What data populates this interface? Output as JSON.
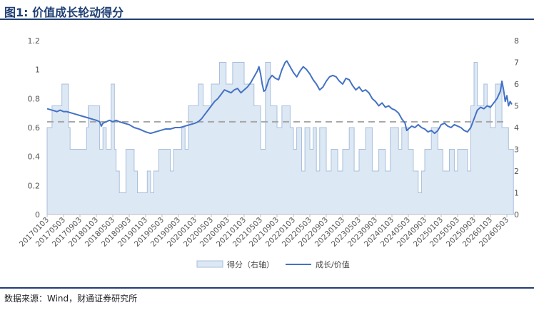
{
  "title": "图1: 价值成长轮动得分",
  "source": "数据来源：Wind，财通证券研究所",
  "legend": {
    "series1": "得分（右轴）",
    "series2": "成长/价值"
  },
  "colors": {
    "area_fill": "#dde8f5",
    "area_stroke": "#a8bfdc",
    "line": "#4472c4",
    "dash": "#a6a6a6",
    "title": "#1f3f73"
  },
  "chart_data": {
    "type": "line",
    "title": "",
    "x_ticks": [
      "20170103",
      "20170503",
      "20170903",
      "20180103",
      "20180503",
      "20180903",
      "20190103",
      "20190503",
      "20190903",
      "20200103",
      "20200503",
      "20200903",
      "20210103",
      "20210503",
      "20210903",
      "20220103",
      "20220503",
      "20220903",
      "20230103",
      "20230503",
      "20230903",
      "20240103",
      "20240503",
      "20240903",
      "20250103",
      "20250503",
      "20250903",
      "20260103",
      "20260503"
    ],
    "y_left": {
      "range": [
        0,
        1.2
      ],
      "ticks": [
        "0",
        "0.2",
        "0.4",
        "0.6",
        "0.8",
        "1",
        "1.2"
      ]
    },
    "y_right": {
      "range": [
        0,
        8
      ],
      "ticks": [
        "0",
        "1",
        "2",
        "3",
        "4",
        "5",
        "6",
        "7",
        "8"
      ]
    },
    "reference_line": 0.64,
    "series": [
      {
        "name": "得分（右轴）",
        "type": "area",
        "axis": "right",
        "points": [
          [
            0,
            4
          ],
          [
            0.3,
            4
          ],
          [
            0.3,
            5
          ],
          [
            0.9,
            5
          ],
          [
            0.9,
            6
          ],
          [
            1.3,
            6
          ],
          [
            1.3,
            4
          ],
          [
            1.4,
            4
          ],
          [
            1.4,
            3
          ],
          [
            2.4,
            3
          ],
          [
            2.4,
            4
          ],
          [
            2.5,
            4
          ],
          [
            2.5,
            5
          ],
          [
            3.2,
            5
          ],
          [
            3.2,
            3
          ],
          [
            3.4,
            3
          ],
          [
            3.4,
            4
          ],
          [
            3.6,
            4
          ],
          [
            3.6,
            3
          ],
          [
            3.9,
            3
          ],
          [
            3.9,
            6
          ],
          [
            4.1,
            6
          ],
          [
            4.1,
            3
          ],
          [
            4.2,
            3
          ],
          [
            4.2,
            2
          ],
          [
            4.4,
            2
          ],
          [
            4.4,
            1
          ],
          [
            4.8,
            1
          ],
          [
            4.8,
            3
          ],
          [
            5.3,
            3
          ],
          [
            5.3,
            2
          ],
          [
            5.5,
            2
          ],
          [
            5.5,
            1
          ],
          [
            6.1,
            1
          ],
          [
            6.1,
            2
          ],
          [
            6.3,
            2
          ],
          [
            6.3,
            1
          ],
          [
            6.5,
            1
          ],
          [
            6.5,
            2
          ],
          [
            6.8,
            2
          ],
          [
            6.8,
            3
          ],
          [
            7.5,
            3
          ],
          [
            7.5,
            2
          ],
          [
            7.7,
            2
          ],
          [
            7.7,
            3
          ],
          [
            8.2,
            3
          ],
          [
            8.2,
            4
          ],
          [
            8.4,
            4
          ],
          [
            8.4,
            3
          ],
          [
            8.6,
            3
          ],
          [
            8.6,
            5
          ],
          [
            9.2,
            5
          ],
          [
            9.2,
            6
          ],
          [
            9.5,
            6
          ],
          [
            9.5,
            5
          ],
          [
            10.0,
            5
          ],
          [
            10.0,
            6
          ],
          [
            10.5,
            6
          ],
          [
            10.5,
            7
          ],
          [
            10.9,
            7
          ],
          [
            10.9,
            6
          ],
          [
            11.3,
            6
          ],
          [
            11.3,
            7
          ],
          [
            12.0,
            7
          ],
          [
            12.0,
            6
          ],
          [
            12.6,
            6
          ],
          [
            12.6,
            5
          ],
          [
            13.0,
            5
          ],
          [
            13.0,
            3
          ],
          [
            13.3,
            3
          ],
          [
            13.3,
            7
          ],
          [
            13.6,
            7
          ],
          [
            13.6,
            5
          ],
          [
            14.0,
            5
          ],
          [
            14.0,
            4
          ],
          [
            14.3,
            4
          ],
          [
            14.3,
            5
          ],
          [
            14.8,
            5
          ],
          [
            14.8,
            4
          ],
          [
            15.0,
            4
          ],
          [
            15.0,
            3
          ],
          [
            15.2,
            3
          ],
          [
            15.2,
            4
          ],
          [
            15.5,
            4
          ],
          [
            15.5,
            2
          ],
          [
            15.7,
            2
          ],
          [
            15.7,
            4
          ],
          [
            16.0,
            4
          ],
          [
            16.0,
            3
          ],
          [
            16.2,
            3
          ],
          [
            16.2,
            4
          ],
          [
            16.4,
            4
          ],
          [
            16.4,
            2
          ],
          [
            16.6,
            2
          ],
          [
            16.6,
            4
          ],
          [
            17.0,
            4
          ],
          [
            17.0,
            2
          ],
          [
            17.3,
            2
          ],
          [
            17.3,
            3
          ],
          [
            17.7,
            3
          ],
          [
            17.7,
            2
          ],
          [
            18.0,
            2
          ],
          [
            18.0,
            3
          ],
          [
            18.4,
            3
          ],
          [
            18.4,
            4
          ],
          [
            18.7,
            4
          ],
          [
            18.7,
            2
          ],
          [
            19.0,
            2
          ],
          [
            19.0,
            3
          ],
          [
            19.4,
            3
          ],
          [
            19.4,
            4
          ],
          [
            19.8,
            4
          ],
          [
            19.8,
            2
          ],
          [
            20.2,
            2
          ],
          [
            20.2,
            3
          ],
          [
            20.6,
            3
          ],
          [
            20.6,
            2
          ],
          [
            20.9,
            2
          ],
          [
            20.9,
            4
          ],
          [
            21.4,
            4
          ],
          [
            21.4,
            3
          ],
          [
            21.6,
            3
          ],
          [
            21.6,
            4
          ],
          [
            22.0,
            4
          ],
          [
            22.0,
            3
          ],
          [
            22.3,
            3
          ],
          [
            22.3,
            2
          ],
          [
            22.6,
            2
          ],
          [
            22.6,
            1
          ],
          [
            22.8,
            1
          ],
          [
            22.8,
            2
          ],
          [
            23.0,
            2
          ],
          [
            23.0,
            3
          ],
          [
            23.4,
            3
          ],
          [
            23.4,
            4
          ],
          [
            23.8,
            4
          ],
          [
            23.8,
            3
          ],
          [
            24.1,
            3
          ],
          [
            24.1,
            2
          ],
          [
            24.5,
            2
          ],
          [
            24.5,
            3
          ],
          [
            24.8,
            3
          ],
          [
            24.8,
            2
          ],
          [
            25.0,
            2
          ],
          [
            25.0,
            3
          ],
          [
            25.6,
            3
          ],
          [
            25.6,
            2
          ],
          [
            25.8,
            2
          ],
          [
            25.8,
            5
          ],
          [
            26.0,
            5
          ],
          [
            26.0,
            7
          ],
          [
            26.2,
            7
          ],
          [
            26.2,
            5
          ],
          [
            26.6,
            5
          ],
          [
            26.6,
            6
          ],
          [
            26.8,
            6
          ],
          [
            26.8,
            5
          ],
          [
            27.0,
            5
          ],
          [
            27.0,
            4
          ],
          [
            27.3,
            4
          ],
          [
            27.3,
            6
          ],
          [
            27.7,
            6
          ],
          [
            27.7,
            4
          ],
          [
            28.1,
            4
          ],
          [
            28.1,
            3
          ],
          [
            28.4,
            3
          ],
          [
            28.4,
            0
          ]
        ]
      },
      {
        "name": "成长/价值",
        "type": "line",
        "axis": "left",
        "points": [
          [
            0,
            0.73
          ],
          [
            0.3,
            0.72
          ],
          [
            0.6,
            0.71
          ],
          [
            0.8,
            0.72
          ],
          [
            1.0,
            0.71
          ],
          [
            1.2,
            0.71
          ],
          [
            1.5,
            0.7
          ],
          [
            1.8,
            0.69
          ],
          [
            2.1,
            0.68
          ],
          [
            2.4,
            0.67
          ],
          [
            2.7,
            0.66
          ],
          [
            3.0,
            0.65
          ],
          [
            3.2,
            0.64
          ],
          [
            3.3,
            0.61
          ],
          [
            3.4,
            0.63
          ],
          [
            3.6,
            0.64
          ],
          [
            3.8,
            0.65
          ],
          [
            4.0,
            0.64
          ],
          [
            4.2,
            0.65
          ],
          [
            4.4,
            0.64
          ],
          [
            4.7,
            0.63
          ],
          [
            5.0,
            0.62
          ],
          [
            5.3,
            0.6
          ],
          [
            5.6,
            0.59
          ],
          [
            5.8,
            0.58
          ],
          [
            6.0,
            0.57
          ],
          [
            6.3,
            0.56
          ],
          [
            6.6,
            0.57
          ],
          [
            6.9,
            0.58
          ],
          [
            7.2,
            0.59
          ],
          [
            7.5,
            0.59
          ],
          [
            7.8,
            0.6
          ],
          [
            8.1,
            0.6
          ],
          [
            8.4,
            0.61
          ],
          [
            8.7,
            0.62
          ],
          [
            9.0,
            0.63
          ],
          [
            9.2,
            0.64
          ],
          [
            9.4,
            0.66
          ],
          [
            9.6,
            0.69
          ],
          [
            9.8,
            0.72
          ],
          [
            10.0,
            0.75
          ],
          [
            10.2,
            0.78
          ],
          [
            10.4,
            0.8
          ],
          [
            10.6,
            0.83
          ],
          [
            10.8,
            0.86
          ],
          [
            11.0,
            0.85
          ],
          [
            11.2,
            0.84
          ],
          [
            11.4,
            0.86
          ],
          [
            11.6,
            0.87
          ],
          [
            11.8,
            0.84
          ],
          [
            12.0,
            0.86
          ],
          [
            12.2,
            0.88
          ],
          [
            12.4,
            0.91
          ],
          [
            12.6,
            0.95
          ],
          [
            12.8,
            0.99
          ],
          [
            12.9,
            1.02
          ],
          [
            13.0,
            0.97
          ],
          [
            13.1,
            0.9
          ],
          [
            13.2,
            0.85
          ],
          [
            13.3,
            0.86
          ],
          [
            13.5,
            0.93
          ],
          [
            13.7,
            0.96
          ],
          [
            13.9,
            0.94
          ],
          [
            14.1,
            0.93
          ],
          [
            14.3,
            1.0
          ],
          [
            14.5,
            1.05
          ],
          [
            14.6,
            1.06
          ],
          [
            14.8,
            1.02
          ],
          [
            15.0,
            0.98
          ],
          [
            15.2,
            0.95
          ],
          [
            15.4,
            0.99
          ],
          [
            15.6,
            1.02
          ],
          [
            15.8,
            1.0
          ],
          [
            16.0,
            0.97
          ],
          [
            16.2,
            0.93
          ],
          [
            16.4,
            0.9
          ],
          [
            16.6,
            0.86
          ],
          [
            16.8,
            0.88
          ],
          [
            17.0,
            0.92
          ],
          [
            17.2,
            0.95
          ],
          [
            17.4,
            0.96
          ],
          [
            17.6,
            0.95
          ],
          [
            17.8,
            0.92
          ],
          [
            18.0,
            0.9
          ],
          [
            18.2,
            0.94
          ],
          [
            18.4,
            0.93
          ],
          [
            18.6,
            0.89
          ],
          [
            18.8,
            0.86
          ],
          [
            19.0,
            0.88
          ],
          [
            19.2,
            0.85
          ],
          [
            19.4,
            0.86
          ],
          [
            19.6,
            0.84
          ],
          [
            19.8,
            0.8
          ],
          [
            20.0,
            0.78
          ],
          [
            20.2,
            0.75
          ],
          [
            20.4,
            0.77
          ],
          [
            20.6,
            0.74
          ],
          [
            20.8,
            0.75
          ],
          [
            21.0,
            0.73
          ],
          [
            21.2,
            0.72
          ],
          [
            21.4,
            0.7
          ],
          [
            21.6,
            0.66
          ],
          [
            21.8,
            0.63
          ],
          [
            21.9,
            0.58
          ],
          [
            22.0,
            0.59
          ],
          [
            22.2,
            0.61
          ],
          [
            22.4,
            0.6
          ],
          [
            22.6,
            0.62
          ],
          [
            22.8,
            0.6
          ],
          [
            23.0,
            0.59
          ],
          [
            23.2,
            0.57
          ],
          [
            23.4,
            0.58
          ],
          [
            23.6,
            0.56
          ],
          [
            23.8,
            0.58
          ],
          [
            24.0,
            0.62
          ],
          [
            24.2,
            0.63
          ],
          [
            24.4,
            0.61
          ],
          [
            24.6,
            0.6
          ],
          [
            24.8,
            0.62
          ],
          [
            25.0,
            0.61
          ],
          [
            25.2,
            0.6
          ],
          [
            25.4,
            0.58
          ],
          [
            25.6,
            0.57
          ],
          [
            25.8,
            0.6
          ],
          [
            26.0,
            0.66
          ],
          [
            26.2,
            0.72
          ],
          [
            26.4,
            0.74
          ],
          [
            26.6,
            0.73
          ],
          [
            26.8,
            0.75
          ],
          [
            27.0,
            0.74
          ],
          [
            27.2,
            0.77
          ],
          [
            27.4,
            0.8
          ],
          [
            27.6,
            0.85
          ],
          [
            27.7,
            0.92
          ],
          [
            27.8,
            0.86
          ],
          [
            27.9,
            0.78
          ],
          [
            28.0,
            0.82
          ],
          [
            28.1,
            0.75
          ],
          [
            28.2,
            0.78
          ],
          [
            28.3,
            0.76
          ]
        ]
      }
    ],
    "grid": false,
    "legend_position": "bottom"
  }
}
